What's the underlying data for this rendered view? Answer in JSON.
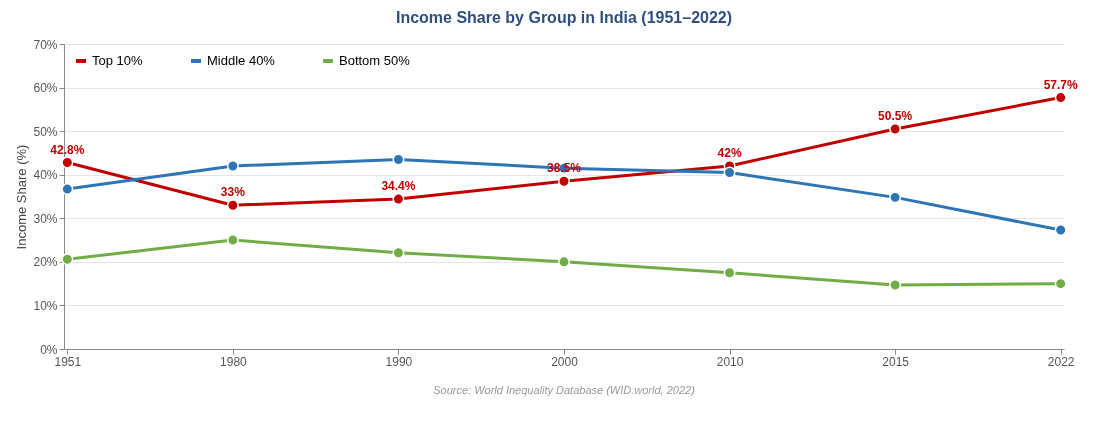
{
  "chart_data": {
    "type": "line",
    "title": "Income Share by Group in India (1951–2022)",
    "ylabel": "Income Share (%)",
    "categories": [
      "1951",
      "1980",
      "1990",
      "2000",
      "2010",
      "2015",
      "2022"
    ],
    "series": [
      {
        "name": "Top 10%",
        "color": "#c00000",
        "values": [
          42.8,
          33,
          34.4,
          38.5,
          42,
          50.5,
          57.7
        ],
        "value_labels": [
          "42.8%",
          "33%",
          "34.4%",
          "38.5%",
          "42%",
          "50.5%",
          "57.7%"
        ]
      },
      {
        "name": "Middle 40%",
        "color": "#2e75b6",
        "values": [
          36.7,
          42,
          43.5,
          41.5,
          40.5,
          34.8,
          27.3
        ]
      },
      {
        "name": "Bottom 50%",
        "color": "#70ad47",
        "values": [
          20.6,
          25,
          22.1,
          20,
          17.5,
          14.7,
          15
        ]
      }
    ],
    "ylim": [
      0,
      70
    ],
    "yticks": [
      {
        "value": 0,
        "label": "0%"
      },
      {
        "value": 10,
        "label": "10%"
      },
      {
        "value": 20,
        "label": "20%"
      },
      {
        "value": 30,
        "label": "30%"
      },
      {
        "value": 40,
        "label": "40%"
      },
      {
        "value": 50,
        "label": "50%"
      },
      {
        "value": 60,
        "label": "60%"
      },
      {
        "value": 70,
        "label": "70%"
      }
    ],
    "grid": "y",
    "legend": "top left",
    "marker": "circle",
    "line_style": "solid",
    "annotations": [
      "Source: World Inequality Database (WID.world, 2022)"
    ]
  }
}
